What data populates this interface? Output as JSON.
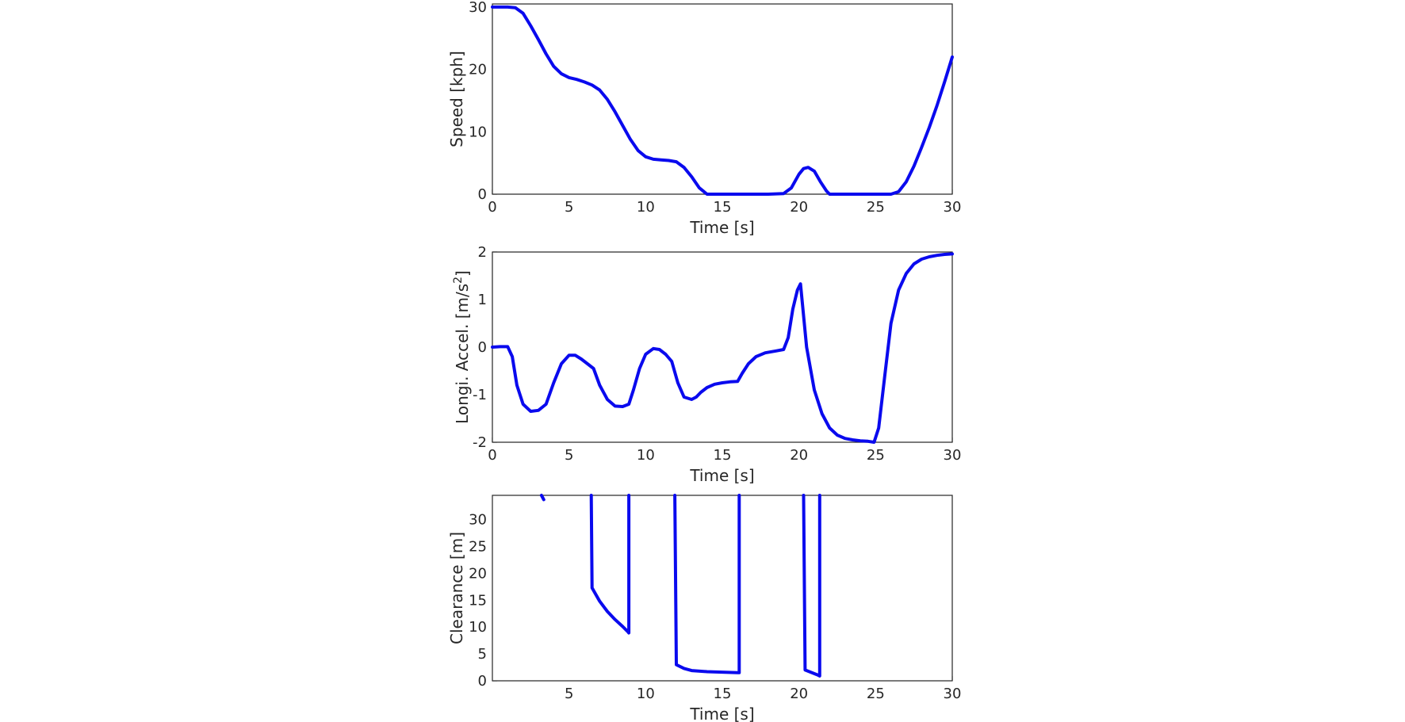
{
  "colors": {
    "series": "#0a0aee",
    "grid": "#dedede",
    "axes": "#262626",
    "background": "#ffffff"
  },
  "chart_data": [
    {
      "type": "line",
      "xlabel": "Time [s]",
      "ylabel": "Speed [kph]",
      "xlim": [
        0,
        30
      ],
      "ylim": [
        0,
        30.5
      ],
      "xticks": [
        0,
        5,
        10,
        15,
        20,
        25,
        30
      ],
      "yticks": [
        0,
        10,
        20,
        30
      ],
      "grid": true,
      "series": [
        {
          "color": "#0a0aee",
          "x": [
            0,
            0.5,
            1.0,
            1.5,
            2.0,
            2.5,
            3.0,
            3.5,
            4.0,
            4.5,
            5.0,
            5.5,
            6.0,
            6.5,
            7.0,
            7.5,
            8.0,
            8.5,
            9.0,
            9.5,
            10.0,
            10.5,
            11.0,
            11.5,
            12.0,
            12.5,
            13.0,
            13.5,
            14.0,
            15.0,
            16.0,
            17.0,
            18.0,
            19.0,
            19.5,
            20.0,
            20.3,
            20.6,
            21.0,
            21.4,
            21.8,
            22.0,
            23.0,
            24.0,
            25.0,
            26.0,
            26.5,
            27.0,
            27.5,
            28.0,
            28.5,
            29.0,
            29.5,
            30.0
          ],
          "y": [
            30.0,
            30.0,
            30.0,
            29.9,
            29.0,
            27.0,
            24.8,
            22.5,
            20.5,
            19.3,
            18.7,
            18.4,
            18.0,
            17.5,
            16.7,
            15.2,
            13.2,
            11.0,
            8.8,
            7.0,
            6.0,
            5.6,
            5.5,
            5.4,
            5.2,
            4.3,
            2.8,
            1.0,
            0.0,
            0.0,
            0.0,
            0.0,
            0.0,
            0.1,
            1.0,
            3.2,
            4.1,
            4.3,
            3.7,
            2.0,
            0.5,
            0.0,
            0.0,
            0.0,
            0.0,
            0.0,
            0.4,
            2.0,
            4.5,
            7.5,
            10.7,
            14.2,
            18.0,
            22.0
          ]
        }
      ]
    },
    {
      "type": "line",
      "xlabel": "Time [s]",
      "ylabel": "Longi. Accel. [m/s",
      "ylabel_superscript": "2",
      "ylabel_suffix": "]",
      "xlim": [
        0,
        30
      ],
      "ylim": [
        -2,
        2
      ],
      "xticks": [
        0,
        5,
        10,
        15,
        20,
        25,
        30
      ],
      "yticks": [
        -2,
        -1,
        0,
        1,
        2
      ],
      "grid": true,
      "series": [
        {
          "color": "#0a0aee",
          "x": [
            0,
            0.5,
            1.0,
            1.3,
            1.6,
            2.0,
            2.5,
            3.0,
            3.5,
            4.0,
            4.5,
            5.0,
            5.4,
            5.8,
            6.2,
            6.6,
            7.0,
            7.5,
            8.0,
            8.5,
            8.9,
            9.2,
            9.6,
            10.0,
            10.5,
            10.9,
            11.3,
            11.7,
            12.1,
            12.5,
            13.0,
            13.3,
            13.6,
            14.0,
            14.5,
            15.0,
            15.5,
            16.0,
            16.3,
            16.7,
            17.2,
            17.8,
            18.5,
            19.0,
            19.3,
            19.6,
            19.9,
            20.1,
            20.5,
            21.0,
            21.5,
            22.0,
            22.5,
            23.0,
            23.5,
            24.0,
            24.5,
            24.9,
            25.2,
            25.6,
            26.0,
            26.5,
            27.0,
            27.5,
            28.0,
            28.5,
            29.0,
            29.5,
            30.0
          ],
          "y": [
            0.0,
            0.01,
            0.01,
            -0.2,
            -0.8,
            -1.2,
            -1.35,
            -1.33,
            -1.2,
            -0.75,
            -0.35,
            -0.17,
            -0.17,
            -0.25,
            -0.35,
            -0.45,
            -0.8,
            -1.1,
            -1.24,
            -1.25,
            -1.2,
            -0.9,
            -0.45,
            -0.15,
            -0.03,
            -0.05,
            -0.15,
            -0.3,
            -0.75,
            -1.05,
            -1.1,
            -1.05,
            -0.95,
            -0.85,
            -0.78,
            -0.75,
            -0.73,
            -0.72,
            -0.55,
            -0.35,
            -0.2,
            -0.12,
            -0.08,
            -0.05,
            0.2,
            0.8,
            1.2,
            1.33,
            0.0,
            -0.9,
            -1.4,
            -1.7,
            -1.85,
            -1.92,
            -1.95,
            -1.97,
            -1.98,
            -2.0,
            -1.7,
            -0.6,
            0.5,
            1.2,
            1.55,
            1.75,
            1.85,
            1.9,
            1.93,
            1.95,
            1.96
          ]
        }
      ]
    },
    {
      "type": "line",
      "xlabel": "Time [s]",
      "ylabel": "Clearance [m]",
      "xlim": [
        0,
        30
      ],
      "ylim": [
        0,
        34.5
      ],
      "xticks": [
        5,
        10,
        15,
        20,
        25,
        30
      ],
      "yticks": [
        0,
        5,
        10,
        15,
        20,
        25,
        30
      ],
      "grid": true,
      "segments": [
        {
          "x": [
            3.2,
            3.35
          ],
          "y": [
            34.5,
            33.7
          ]
        },
        {
          "x": [
            6.45,
            6.5,
            7.0,
            7.5,
            8.0,
            8.5,
            8.85,
            8.9,
            8.9
          ],
          "y": [
            34.5,
            17.3,
            14.8,
            12.9,
            11.4,
            10.1,
            9.1,
            8.9,
            34.5
          ]
        },
        {
          "x": [
            11.9,
            12.0,
            12.5,
            13.0,
            14.0,
            15.0,
            16.0,
            16.1,
            16.1
          ],
          "y": [
            34.5,
            3.0,
            2.3,
            1.9,
            1.7,
            1.6,
            1.5,
            1.5,
            34.5
          ]
        },
        {
          "x": [
            20.3,
            20.4,
            21.2,
            21.35,
            21.35
          ],
          "y": [
            34.5,
            2.0,
            1.1,
            0.9,
            34.5
          ]
        }
      ],
      "series_color": "#0a0aee"
    }
  ]
}
